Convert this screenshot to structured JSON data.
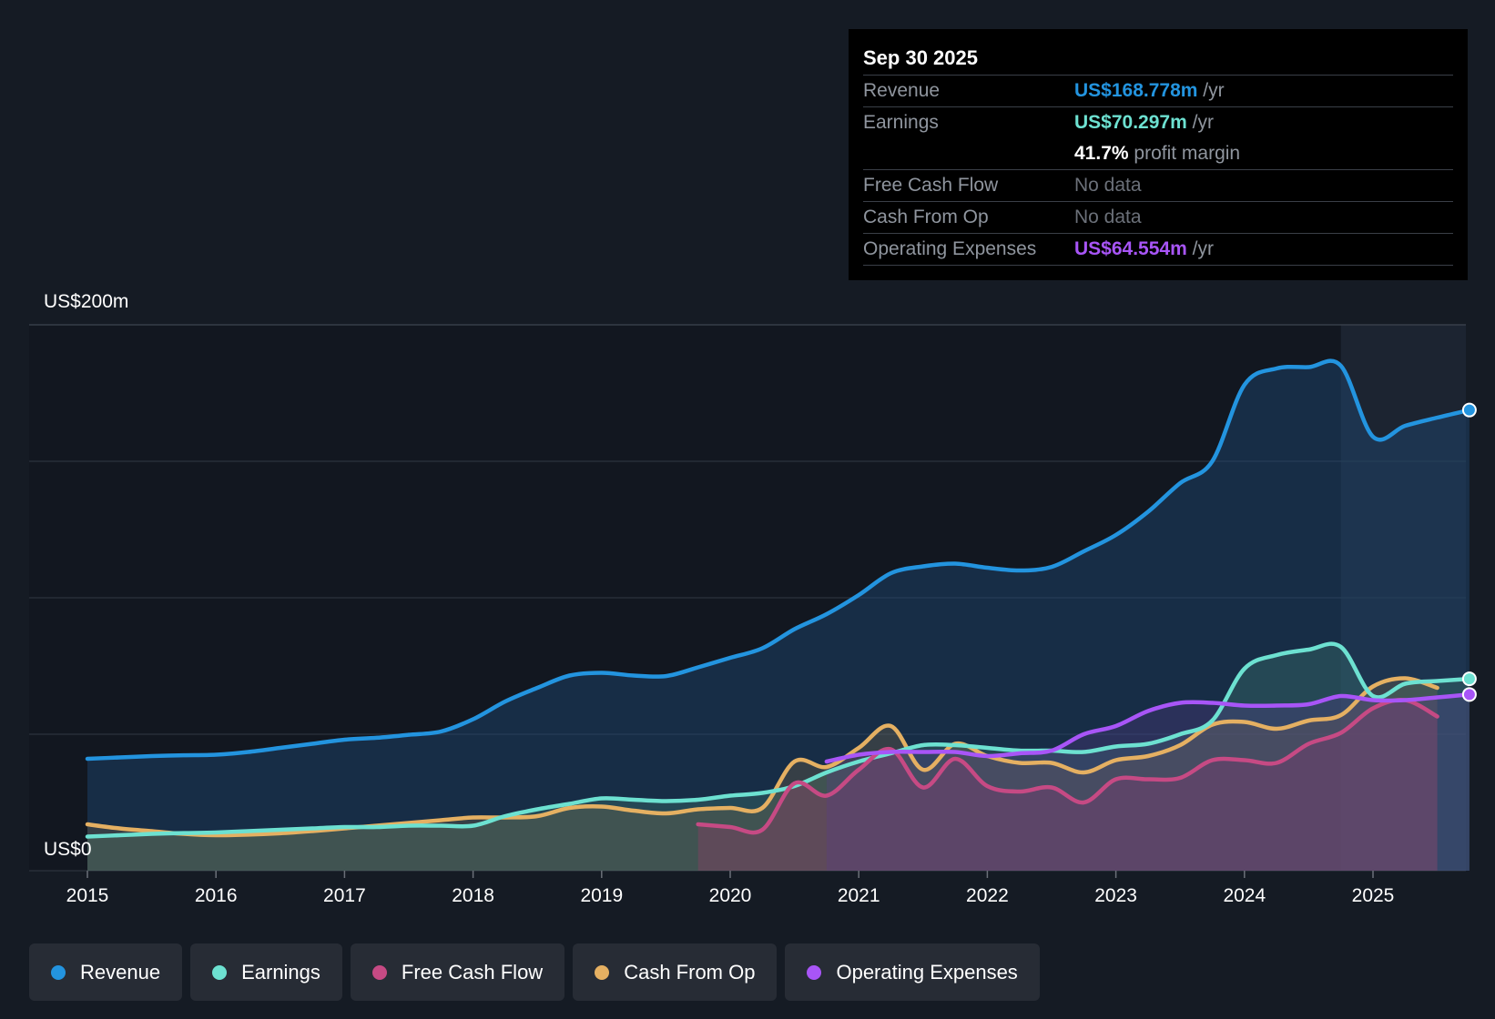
{
  "tooltip": {
    "date": "Sep 30 2025",
    "revenue": {
      "label": "Revenue",
      "value": "US$168.778m",
      "unit": "/yr"
    },
    "earnings": {
      "label": "Earnings",
      "value": "US$70.297m",
      "unit": "/yr"
    },
    "margin": {
      "value": "41.7%",
      "text": "profit margin"
    },
    "fcf": {
      "label": "Free Cash Flow",
      "value": "No data"
    },
    "cfo": {
      "label": "Cash From Op",
      "value": "No data"
    },
    "opex": {
      "label": "Operating Expenses",
      "value": "US$64.554m",
      "unit": "/yr"
    }
  },
  "colors": {
    "background": "#151b24",
    "revenue": "#2394df",
    "earnings": "#6de1d1",
    "fcf": "#c64a84",
    "cfo": "#e5b062",
    "opex": "#a855f7"
  },
  "chart_data": {
    "type": "area",
    "title": "",
    "xlabel": "",
    "ylabel": "",
    "y_axis_labels": {
      "top": "US$200m",
      "bottom": "US$0"
    },
    "ylim": [
      0,
      200
    ],
    "xlim": [
      2014.55,
      2025.75
    ],
    "x_ticks": [
      2015,
      2016,
      2017,
      2018,
      2019,
      2020,
      2021,
      2022,
      2023,
      2024,
      2025
    ],
    "x_tick_labels": [
      "2015",
      "2016",
      "2017",
      "2018",
      "2019",
      "2020",
      "2021",
      "2022",
      "2023",
      "2024",
      "2025"
    ],
    "gridlines_y": [
      0,
      50,
      100,
      150,
      200
    ],
    "forecast_shade_from": 2024.75,
    "series": [
      {
        "name": "Revenue",
        "key": "revenue",
        "x": [
          2015.0,
          2015.25,
          2015.5,
          2015.75,
          2016.0,
          2016.25,
          2016.5,
          2016.75,
          2017.0,
          2017.25,
          2017.5,
          2017.75,
          2018.0,
          2018.25,
          2018.5,
          2018.75,
          2019.0,
          2019.25,
          2019.5,
          2019.75,
          2020.0,
          2020.25,
          2020.5,
          2020.75,
          2021.0,
          2021.25,
          2021.5,
          2021.75,
          2022.0,
          2022.25,
          2022.5,
          2022.75,
          2023.0,
          2023.25,
          2023.5,
          2023.75,
          2024.0,
          2024.25,
          2024.5,
          2024.75,
          2025.0,
          2025.25,
          2025.5,
          2025.75
        ],
        "values": [
          41,
          41.5,
          42,
          42.3,
          42.5,
          43.5,
          45,
          46.5,
          48,
          48.7,
          49.8,
          51,
          55.5,
          62,
          67,
          71.5,
          72.5,
          71.5,
          71.3,
          74.5,
          78,
          81.5,
          88.5,
          94,
          101,
          109,
          111.5,
          112.5,
          111,
          110,
          111.3,
          117,
          123,
          131.5,
          142,
          150,
          178,
          184,
          184.5,
          185,
          159,
          163,
          166,
          168.778
        ]
      },
      {
        "name": "Earnings",
        "key": "earnings",
        "x": [
          2015.0,
          2015.25,
          2015.5,
          2015.75,
          2016.0,
          2016.25,
          2016.5,
          2016.75,
          2017.0,
          2017.25,
          2017.5,
          2017.75,
          2018.0,
          2018.25,
          2018.5,
          2018.75,
          2019.0,
          2019.25,
          2019.5,
          2019.75,
          2020.0,
          2020.25,
          2020.5,
          2020.75,
          2021.0,
          2021.25,
          2021.5,
          2021.75,
          2022.0,
          2022.25,
          2022.5,
          2022.75,
          2023.0,
          2023.25,
          2023.5,
          2023.75,
          2024.0,
          2024.25,
          2024.5,
          2024.75,
          2025.0,
          2025.25,
          2025.5,
          2025.75
        ],
        "values": [
          12.5,
          13,
          13.5,
          13.8,
          14,
          14.5,
          15,
          15.5,
          16,
          16,
          16.5,
          16.5,
          16.5,
          20,
          22.5,
          24.5,
          26.5,
          26,
          25.5,
          26,
          27.5,
          28.5,
          31,
          36,
          40,
          43,
          46,
          46,
          45,
          44,
          44,
          43.5,
          45.5,
          46.5,
          50,
          55,
          74,
          79,
          81,
          82,
          64,
          68.5,
          69.5,
          70.297
        ]
      },
      {
        "name": "Free Cash Flow",
        "key": "fcf",
        "x": [
          2019.75,
          2020.0,
          2020.25,
          2020.5,
          2020.75,
          2021.0,
          2021.25,
          2021.5,
          2021.75,
          2022.0,
          2022.25,
          2022.5,
          2022.75,
          2023.0,
          2023.25,
          2023.5,
          2023.75,
          2024.0,
          2024.25,
          2024.5,
          2024.75,
          2025.0,
          2025.25,
          2025.5
        ],
        "values": [
          17,
          16,
          15,
          32,
          27.5,
          37,
          44.5,
          30.5,
          41,
          31,
          29,
          30.5,
          25,
          33.5,
          33.5,
          34,
          40.5,
          40.5,
          39.5,
          46.5,
          50.5,
          59.5,
          62.5,
          56.5
        ]
      },
      {
        "name": "Cash From Op",
        "key": "cfo",
        "x": [
          2015.0,
          2015.25,
          2015.5,
          2015.75,
          2016.0,
          2016.25,
          2016.5,
          2016.75,
          2017.0,
          2017.25,
          2017.5,
          2017.75,
          2018.0,
          2018.25,
          2018.5,
          2018.75,
          2019.0,
          2019.25,
          2019.5,
          2019.75,
          2020.0,
          2020.25,
          2020.5,
          2020.75,
          2021.0,
          2021.25,
          2021.5,
          2021.75,
          2022.0,
          2022.25,
          2022.5,
          2022.75,
          2023.0,
          2023.25,
          2023.5,
          2023.75,
          2024.0,
          2024.25,
          2024.5,
          2024.75,
          2025.0,
          2025.25,
          2025.5
        ],
        "values": [
          17,
          15.5,
          14.5,
          13.5,
          13,
          13.2,
          13.7,
          14.5,
          15.5,
          16.5,
          17.5,
          18.5,
          19.5,
          19.5,
          20,
          23,
          23.5,
          22,
          21,
          22.5,
          23,
          23,
          40,
          38,
          45,
          53,
          37,
          46.5,
          42,
          39.5,
          39.5,
          36,
          40.5,
          42,
          46,
          53.5,
          54.5,
          52,
          55,
          57,
          67.5,
          70.5,
          67
        ]
      },
      {
        "name": "Operating Expenses",
        "key": "opex",
        "x": [
          2020.75,
          2021.0,
          2021.25,
          2021.5,
          2021.75,
          2022.0,
          2022.25,
          2022.5,
          2022.75,
          2023.0,
          2023.25,
          2023.5,
          2023.75,
          2024.0,
          2024.25,
          2024.5,
          2024.75,
          2025.0,
          2025.25,
          2025.5,
          2025.75
        ],
        "values": [
          40,
          42.5,
          43.5,
          43.5,
          43.5,
          42,
          43,
          44,
          50,
          53,
          58.5,
          61.5,
          61.5,
          60.5,
          60.5,
          61,
          64,
          62.5,
          62.5,
          63.5,
          64.554
        ]
      }
    ],
    "legend": [
      "Revenue",
      "Earnings",
      "Free Cash Flow",
      "Cash From Op",
      "Operating Expenses"
    ]
  }
}
